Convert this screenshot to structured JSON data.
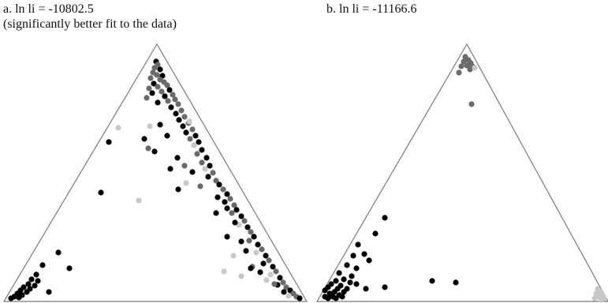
{
  "panel_a": {
    "title": "a. ln li = -10802.5",
    "subtitle": "(significantly better fit to the data)"
  },
  "panel_b": {
    "title": "b. ln li = -11166.6"
  },
  "colors": {
    "black_points": "#000000",
    "dark_gray_points": "#6a6a6a",
    "light_gray_points": "#c8c8c8",
    "triangle_edge": "#7a7a7a"
  }
}
